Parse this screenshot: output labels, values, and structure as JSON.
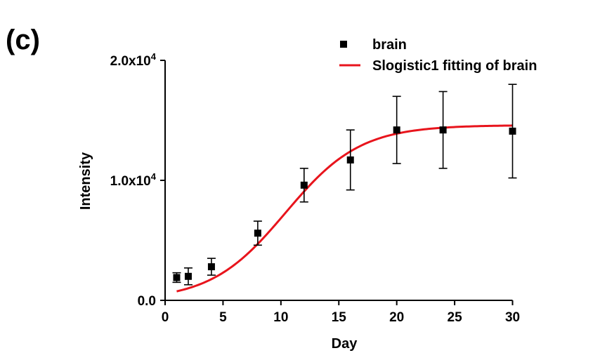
{
  "panel_label": "(c)",
  "chart_data": {
    "type": "scatter",
    "title": "",
    "xlabel": "Day",
    "ylabel": "Intensity",
    "xlim": [
      0,
      31
    ],
    "ylim": [
      0,
      20000
    ],
    "x_ticks": [
      0,
      5,
      10,
      15,
      20,
      25,
      30
    ],
    "x_tick_labels": [
      "0",
      "5",
      "10",
      "15",
      "20",
      "25",
      "30"
    ],
    "y_ticks": [
      0,
      10000,
      20000
    ],
    "y_tick_labels": [
      {
        "base": "0.0",
        "exp": ""
      },
      {
        "base": "1.0x10",
        "exp": "4"
      },
      {
        "base": "2.0x10",
        "exp": "4"
      }
    ],
    "grid": false,
    "legend_position": "top-right",
    "series": [
      {
        "name": "brain",
        "kind": "points",
        "color": "#000000",
        "x": [
          1,
          2,
          4,
          8,
          12,
          16,
          20,
          24,
          30
        ],
        "y": [
          1900,
          2000,
          2800,
          5600,
          9600,
          11700,
          14200,
          14200,
          14100
        ],
        "err": [
          400,
          700,
          700,
          1000,
          1400,
          2500,
          2800,
          3200,
          3900
        ]
      },
      {
        "name": "Slogistic1 fitting of brain",
        "kind": "line",
        "color": "#e8141c",
        "model": {
          "a": 14600,
          "xc": 10.4,
          "k": 0.31
        },
        "x_range": [
          1,
          30
        ]
      }
    ]
  }
}
